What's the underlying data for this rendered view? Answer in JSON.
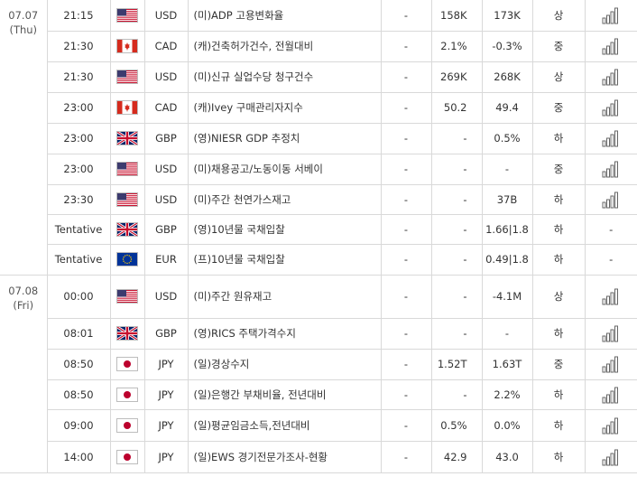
{
  "dates": [
    {
      "date": "07.07",
      "day": "(Thu)"
    },
    {
      "date": "07.08",
      "day": "(Fri)"
    }
  ],
  "rows": [
    {
      "time": "21:15",
      "flag": "us-flag-icon",
      "currency": "USD",
      "event": "(미)ADP 고용변화율",
      "actual": "-",
      "forecast": "158K",
      "previous": "173K",
      "importance": "상",
      "chart": "bar-chart-icon"
    },
    {
      "time": "21:30",
      "flag": "canada-flag-icon",
      "currency": "CAD",
      "event": "(캐)건축허가건수, 전월대비",
      "actual": "-",
      "forecast": "2.1%",
      "previous": "-0.3%",
      "importance": "중",
      "chart": "bar-chart-icon"
    },
    {
      "time": "21:30",
      "flag": "us-flag-icon",
      "currency": "USD",
      "event": "(미)신규 실업수당 청구건수",
      "actual": "-",
      "forecast": "269K",
      "previous": "268K",
      "importance": "상",
      "chart": "bar-chart-icon"
    },
    {
      "time": "23:00",
      "flag": "canada-flag-icon",
      "currency": "CAD",
      "event": "(캐)Ivey 구매관리자지수",
      "actual": "-",
      "forecast": "50.2",
      "previous": "49.4",
      "importance": "중",
      "chart": "bar-chart-icon"
    },
    {
      "time": "23:00",
      "flag": "uk-flag-icon",
      "currency": "GBP",
      "event": "(영)NIESR GDP 추정치",
      "actual": "-",
      "forecast": "-",
      "previous": "0.5%",
      "importance": "하",
      "chart": "bar-chart-icon"
    },
    {
      "time": "23:00",
      "flag": "us-flag-icon",
      "currency": "USD",
      "event": "(미)채용공고/노동이동 서베이",
      "actual": "-",
      "forecast": "-",
      "previous": "-",
      "importance": "중",
      "chart": "bar-chart-icon"
    },
    {
      "time": "23:30",
      "flag": "us-flag-icon",
      "currency": "USD",
      "event": "(미)주간 천연가스재고",
      "actual": "-",
      "forecast": "-",
      "previous": "37B",
      "importance": "하",
      "chart": "bar-chart-icon"
    },
    {
      "time": "Tentative",
      "flag": "uk-flag-icon",
      "currency": "GBP",
      "event": "(영)10년물 국채입찰",
      "actual": "-",
      "forecast": "-",
      "previous": "1.66|1.8",
      "importance": "하",
      "chart": "-"
    },
    {
      "time": "Tentative",
      "flag": "eu-flag-icon",
      "currency": "EUR",
      "event": "(프)10년물 국채입찰",
      "actual": "-",
      "forecast": "-",
      "previous": "0.49|1.8",
      "importance": "하",
      "chart": "-"
    },
    {
      "time": "00:00",
      "flag": "us-flag-icon",
      "currency": "USD",
      "event": "(미)주간 원유재고",
      "actual": "-",
      "forecast": "-",
      "previous": "-4.1M",
      "importance": "상",
      "chart": "bar-chart-icon"
    },
    {
      "time": "08:01",
      "flag": "uk-flag-icon",
      "currency": "GBP",
      "event": "(영)RICS 주택가격수지",
      "actual": "-",
      "forecast": "-",
      "previous": "-",
      "importance": "하",
      "chart": "bar-chart-icon"
    },
    {
      "time": "08:50",
      "flag": "japan-flag-icon",
      "currency": "JPY",
      "event": "(일)경상수지",
      "actual": "-",
      "forecast": "1.52T",
      "previous": "1.63T",
      "importance": "중",
      "chart": "bar-chart-icon"
    },
    {
      "time": "08:50",
      "flag": "japan-flag-icon",
      "currency": "JPY",
      "event": "(일)은행간 부채비율, 전년대비",
      "actual": "-",
      "forecast": "-",
      "previous": "2.2%",
      "importance": "하",
      "chart": "bar-chart-icon"
    },
    {
      "time": "09:00",
      "flag": "japan-flag-icon",
      "currency": "JPY",
      "event": "(일)평균임금소득,전년대비",
      "actual": "-",
      "forecast": "0.5%",
      "previous": "0.0%",
      "importance": "하",
      "chart": "bar-chart-icon"
    },
    {
      "time": "14:00",
      "flag": "japan-flag-icon",
      "currency": "JPY",
      "event": "(일)EWS 경기전문가조사-현황",
      "actual": "-",
      "forecast": "42.9",
      "previous": "43.0",
      "importance": "하",
      "chart": "bar-chart-icon"
    }
  ]
}
